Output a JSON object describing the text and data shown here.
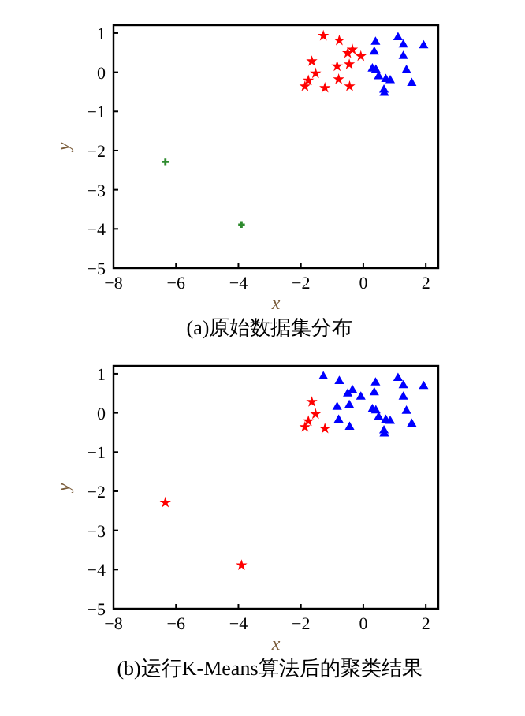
{
  "chart_data": [
    {
      "type": "scatter",
      "title": "(a)原始数据集分布",
      "xlabel": "x",
      "ylabel": "y",
      "xlim": [
        -8,
        2.4
      ],
      "ylim": [
        -5,
        1.2
      ],
      "xticks": [
        -8,
        -6,
        -4,
        -2,
        0,
        2
      ],
      "yticks": [
        -5,
        -4,
        -3,
        -2,
        -1,
        0,
        1
      ],
      "grid": false,
      "series": [
        {
          "color": "#ff0000",
          "marker": "star",
          "x": [
            -1.28,
            -0.77,
            -0.35,
            -0.5,
            -0.08,
            -1.65,
            -0.84,
            -0.45,
            -1.53,
            -1.76,
            -0.79,
            -1.87,
            -1.23,
            -0.44
          ],
          "values": [
            0.93,
            0.81,
            0.58,
            0.49,
            0.41,
            0.28,
            0.15,
            0.2,
            -0.03,
            -0.21,
            -0.18,
            -0.36,
            -0.4,
            -0.36
          ]
        },
        {
          "color": "#0000ff",
          "marker": "triangle",
          "x": [
            0.39,
            0.35,
            1.11,
            1.28,
            1.93,
            1.28,
            0.29,
            0.4,
            1.38,
            0.49,
            0.72,
            0.86,
            1.55,
            0.66,
            0.67
          ],
          "values": [
            0.77,
            0.52,
            0.89,
            0.7,
            0.68,
            0.41,
            0.09,
            0.06,
            0.05,
            -0.11,
            -0.18,
            -0.21,
            -0.28,
            -0.45,
            -0.53
          ]
        },
        {
          "color": "#2e8b2e",
          "marker": "cross",
          "x": [
            -6.34,
            -3.9
          ],
          "values": [
            -2.29,
            -3.89
          ]
        }
      ]
    },
    {
      "type": "scatter",
      "title": "(b)运行K-Means算法后的聚类结果",
      "xlabel": "x",
      "ylabel": "y",
      "xlim": [
        -8,
        2.4
      ],
      "ylim": [
        -5,
        1.2
      ],
      "xticks": [
        -8,
        -6,
        -4,
        -2,
        0,
        2
      ],
      "yticks": [
        -5,
        -4,
        -3,
        -2,
        -1,
        0,
        1
      ],
      "grid": false,
      "series": [
        {
          "color": "#ff0000",
          "marker": "star",
          "x": [
            -6.34,
            -3.9,
            -1.65,
            -1.53,
            -1.76,
            -1.87,
            -1.23
          ],
          "values": [
            -2.29,
            -3.89,
            0.28,
            -0.03,
            -0.21,
            -0.36,
            -0.4
          ]
        },
        {
          "color": "#0000ff",
          "marker": "triangle",
          "x": [
            -1.28,
            -0.77,
            -0.35,
            -0.5,
            -0.08,
            -0.84,
            -0.45,
            -0.79,
            -0.44,
            0.39,
            0.35,
            1.11,
            1.28,
            1.93,
            1.28,
            0.29,
            0.4,
            1.38,
            0.49,
            0.72,
            0.86,
            1.55,
            0.66,
            0.67
          ],
          "values": [
            0.93,
            0.81,
            0.58,
            0.49,
            0.41,
            0.15,
            0.2,
            -0.18,
            -0.36,
            0.77,
            0.52,
            0.89,
            0.7,
            0.68,
            0.41,
            0.09,
            0.06,
            0.05,
            -0.11,
            -0.18,
            -0.21,
            -0.28,
            -0.45,
            -0.53
          ]
        }
      ]
    }
  ]
}
